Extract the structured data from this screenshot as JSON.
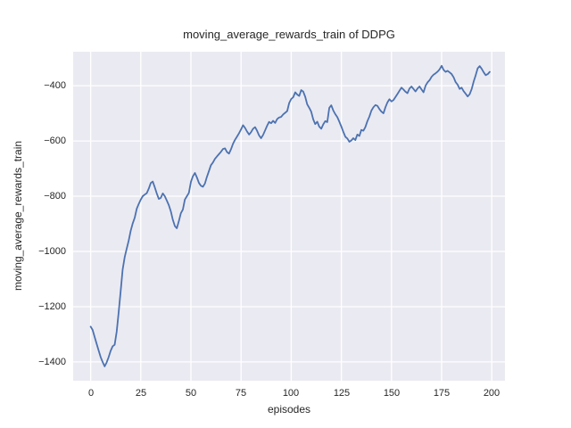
{
  "chart_data": {
    "type": "line",
    "title": "moving_average_rewards_train of DDPG",
    "xlabel": "episodes",
    "ylabel": "moving_average_rewards_train",
    "x_ticks": [
      0,
      25,
      50,
      75,
      100,
      125,
      150,
      175,
      200
    ],
    "y_ticks": [
      -400,
      -600,
      -800,
      -1000,
      -1200,
      -1400
    ],
    "xlim": [
      -8.7,
      206.6
    ],
    "ylim": [
      -1468,
      -277
    ],
    "grid": true,
    "legend_position": "none",
    "style": {
      "line_color": "#4C72B0",
      "plot_background": "#EAEAF2",
      "grid_color": "#FFFFFF",
      "text_color": "#262626",
      "figure_background": "#FFFFFF",
      "line_width": 1.8
    },
    "series": [
      {
        "name": "moving_average_rewards_train",
        "points": [
          [
            0,
            -1272
          ],
          [
            1,
            -1284
          ],
          [
            2,
            -1310
          ],
          [
            3,
            -1334
          ],
          [
            4,
            -1358
          ],
          [
            5,
            -1382
          ],
          [
            6,
            -1400
          ],
          [
            7,
            -1416
          ],
          [
            8,
            -1402
          ],
          [
            9,
            -1382
          ],
          [
            10,
            -1360
          ],
          [
            11,
            -1343
          ],
          [
            12,
            -1338
          ],
          [
            13,
            -1290
          ],
          [
            14,
            -1220
          ],
          [
            15,
            -1142
          ],
          [
            16,
            -1065
          ],
          [
            17,
            -1020
          ],
          [
            18,
            -990
          ],
          [
            19,
            -960
          ],
          [
            20,
            -925
          ],
          [
            21,
            -898
          ],
          [
            22,
            -878
          ],
          [
            23,
            -845
          ],
          [
            24,
            -828
          ],
          [
            25,
            -812
          ],
          [
            26,
            -800
          ],
          [
            27,
            -794
          ],
          [
            28,
            -789
          ],
          [
            29,
            -772
          ],
          [
            30,
            -752
          ],
          [
            31,
            -747
          ],
          [
            32,
            -768
          ],
          [
            33,
            -790
          ],
          [
            34,
            -810
          ],
          [
            35,
            -806
          ],
          [
            36,
            -790
          ],
          [
            37,
            -800
          ],
          [
            38,
            -816
          ],
          [
            39,
            -832
          ],
          [
            40,
            -855
          ],
          [
            41,
            -885
          ],
          [
            42,
            -908
          ],
          [
            43,
            -916
          ],
          [
            44,
            -890
          ],
          [
            45,
            -862
          ],
          [
            46,
            -848
          ],
          [
            47,
            -812
          ],
          [
            48,
            -800
          ],
          [
            49,
            -788
          ],
          [
            50,
            -748
          ],
          [
            51,
            -728
          ],
          [
            52,
            -716
          ],
          [
            53,
            -732
          ],
          [
            54,
            -752
          ],
          [
            55,
            -762
          ],
          [
            56,
            -766
          ],
          [
            57,
            -754
          ],
          [
            58,
            -730
          ],
          [
            59,
            -709
          ],
          [
            60,
            -688
          ],
          [
            61,
            -678
          ],
          [
            62,
            -665
          ],
          [
            63,
            -656
          ],
          [
            64,
            -648
          ],
          [
            65,
            -639
          ],
          [
            66,
            -629
          ],
          [
            67,
            -627
          ],
          [
            68,
            -640
          ],
          [
            69,
            -646
          ],
          [
            70,
            -630
          ],
          [
            71,
            -610
          ],
          [
            72,
            -596
          ],
          [
            73,
            -584
          ],
          [
            74,
            -572
          ],
          [
            75,
            -558
          ],
          [
            76,
            -543
          ],
          [
            77,
            -553
          ],
          [
            78,
            -566
          ],
          [
            79,
            -577
          ],
          [
            80,
            -568
          ],
          [
            81,
            -556
          ],
          [
            82,
            -550
          ],
          [
            83,
            -563
          ],
          [
            84,
            -580
          ],
          [
            85,
            -590
          ],
          [
            86,
            -578
          ],
          [
            87,
            -562
          ],
          [
            88,
            -545
          ],
          [
            89,
            -531
          ],
          [
            90,
            -536
          ],
          [
            91,
            -527
          ],
          [
            92,
            -535
          ],
          [
            93,
            -521
          ],
          [
            94,
            -515
          ],
          [
            95,
            -513
          ],
          [
            96,
            -504
          ],
          [
            97,
            -498
          ],
          [
            98,
            -492
          ],
          [
            99,
            -463
          ],
          [
            100,
            -448
          ],
          [
            101,
            -442
          ],
          [
            102,
            -424
          ],
          [
            103,
            -432
          ],
          [
            104,
            -437
          ],
          [
            105,
            -416
          ],
          [
            106,
            -421
          ],
          [
            107,
            -440
          ],
          [
            108,
            -467
          ],
          [
            109,
            -480
          ],
          [
            110,
            -494
          ],
          [
            111,
            -522
          ],
          [
            112,
            -539
          ],
          [
            113,
            -530
          ],
          [
            114,
            -548
          ],
          [
            115,
            -556
          ],
          [
            116,
            -540
          ],
          [
            117,
            -528
          ],
          [
            118,
            -532
          ],
          [
            119,
            -480
          ],
          [
            120,
            -471
          ],
          [
            121,
            -490
          ],
          [
            122,
            -503
          ],
          [
            123,
            -514
          ],
          [
            124,
            -530
          ],
          [
            125,
            -548
          ],
          [
            126,
            -567
          ],
          [
            127,
            -585
          ],
          [
            128,
            -591
          ],
          [
            129,
            -603
          ],
          [
            130,
            -598
          ],
          [
            131,
            -590
          ],
          [
            132,
            -597
          ],
          [
            133,
            -577
          ],
          [
            134,
            -582
          ],
          [
            135,
            -560
          ],
          [
            136,
            -563
          ],
          [
            137,
            -550
          ],
          [
            138,
            -528
          ],
          [
            139,
            -512
          ],
          [
            140,
            -490
          ],
          [
            141,
            -478
          ],
          [
            142,
            -470
          ],
          [
            143,
            -473
          ],
          [
            144,
            -485
          ],
          [
            145,
            -494
          ],
          [
            146,
            -500
          ],
          [
            147,
            -478
          ],
          [
            148,
            -460
          ],
          [
            149,
            -449
          ],
          [
            150,
            -457
          ],
          [
            151,
            -452
          ],
          [
            152,
            -441
          ],
          [
            153,
            -430
          ],
          [
            154,
            -418
          ],
          [
            155,
            -407
          ],
          [
            156,
            -414
          ],
          [
            157,
            -422
          ],
          [
            158,
            -427
          ],
          [
            159,
            -410
          ],
          [
            160,
            -403
          ],
          [
            161,
            -412
          ],
          [
            162,
            -421
          ],
          [
            163,
            -410
          ],
          [
            164,
            -403
          ],
          [
            165,
            -414
          ],
          [
            166,
            -424
          ],
          [
            167,
            -400
          ],
          [
            168,
            -388
          ],
          [
            169,
            -380
          ],
          [
            170,
            -368
          ],
          [
            171,
            -360
          ],
          [
            172,
            -355
          ],
          [
            173,
            -349
          ],
          [
            174,
            -341
          ],
          [
            175,
            -328
          ],
          [
            176,
            -343
          ],
          [
            177,
            -350
          ],
          [
            178,
            -346
          ],
          [
            179,
            -352
          ],
          [
            180,
            -358
          ],
          [
            181,
            -370
          ],
          [
            182,
            -387
          ],
          [
            183,
            -396
          ],
          [
            184,
            -412
          ],
          [
            185,
            -407
          ],
          [
            186,
            -420
          ],
          [
            187,
            -429
          ],
          [
            188,
            -439
          ],
          [
            189,
            -431
          ],
          [
            190,
            -412
          ],
          [
            191,
            -385
          ],
          [
            192,
            -362
          ],
          [
            193,
            -337
          ],
          [
            194,
            -329
          ],
          [
            195,
            -339
          ],
          [
            196,
            -352
          ],
          [
            197,
            -362
          ],
          [
            198,
            -358
          ],
          [
            199,
            -350
          ]
        ]
      }
    ]
  }
}
